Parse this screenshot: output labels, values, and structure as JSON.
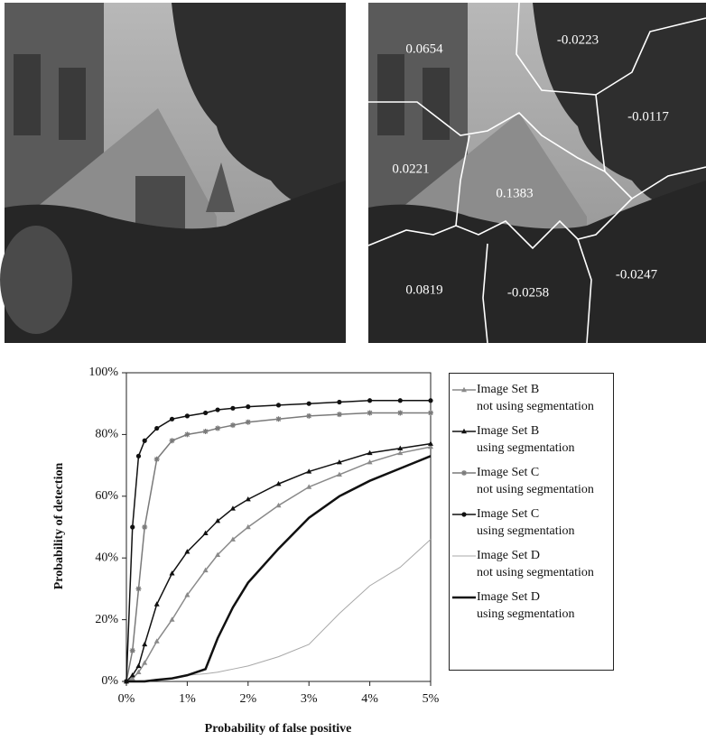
{
  "images": {
    "segment_labels": [
      "0.0654",
      "-0.0223",
      "-0.0117",
      "0.0221",
      "0.1383",
      "0.0819",
      "-0.0258",
      "-0.0247"
    ]
  },
  "chart_data": {
    "type": "line",
    "x_label": "Probability of false positive",
    "y_label": "Probability of detection",
    "x": [
      0,
      0.1,
      0.2,
      0.3,
      0.5,
      0.75,
      1,
      1.3,
      1.5,
      1.75,
      2,
      2.5,
      3,
      3.5,
      4,
      4.5,
      5
    ],
    "xlim": [
      0,
      5
    ],
    "xticks": [
      {
        "value": 0,
        "label": "0%"
      },
      {
        "value": 1,
        "label": "1%"
      },
      {
        "value": 2,
        "label": "2%"
      },
      {
        "value": 3,
        "label": "3%"
      },
      {
        "value": 4,
        "label": "4%"
      },
      {
        "value": 5,
        "label": "5%"
      }
    ],
    "ylim": [
      0,
      100
    ],
    "yticks": [
      {
        "value": 0,
        "label": "0%"
      },
      {
        "value": 20,
        "label": "20%"
      },
      {
        "value": 40,
        "label": "40%"
      },
      {
        "value": 60,
        "label": "60%"
      },
      {
        "value": 80,
        "label": "80%"
      },
      {
        "value": 100,
        "label": "100%"
      }
    ],
    "grid": false,
    "legend": "right",
    "series": [
      {
        "name": "Image Set B\nnot using segmentation",
        "color": "#8a8a8a",
        "marker": "triangle",
        "line_width": 1.5,
        "values": [
          0,
          1,
          3,
          6,
          13,
          20,
          28,
          36,
          41,
          46,
          50,
          57,
          63,
          67,
          71,
          74,
          76
        ]
      },
      {
        "name": "Image Set B\nusing segmentation",
        "color": "#111111",
        "marker": "triangle",
        "line_width": 1.5,
        "values": [
          0,
          2,
          5,
          12,
          25,
          35,
          42,
          48,
          52,
          56,
          59,
          64,
          68,
          71,
          74,
          75.5,
          77
        ]
      },
      {
        "name": "Image Set C\nnot using segmentation",
        "color": "#7a7a7a",
        "marker": "star",
        "line_width": 1.5,
        "values": [
          0,
          10,
          30,
          50,
          72,
          78,
          80,
          81,
          82,
          83,
          84,
          85,
          86,
          86.5,
          87,
          87,
          87
        ]
      },
      {
        "name": "Image Set C\nusing segmentation",
        "color": "#111111",
        "marker": "circle",
        "line_width": 1.5,
        "values": [
          0,
          50,
          73,
          78,
          82,
          85,
          86,
          87,
          88,
          88.5,
          89,
          89.5,
          90,
          90.5,
          91,
          91,
          91
        ]
      },
      {
        "name": "Image Set D\nnot using segmentation",
        "color": "#a8a8a8",
        "marker": "none",
        "line_width": 1,
        "values": [
          0,
          0,
          0.2,
          0.3,
          0.7,
          1,
          2,
          2.5,
          3,
          4,
          5,
          8,
          12,
          22,
          31,
          37,
          46
        ]
      },
      {
        "name": "Image Set D\nusing segmentation",
        "color": "#111111",
        "marker": "none",
        "line_width": 2.5,
        "values": [
          0,
          0,
          0,
          0,
          0.5,
          1,
          2,
          4,
          14,
          24,
          32,
          43,
          53,
          60,
          65,
          69,
          73
        ]
      }
    ]
  }
}
